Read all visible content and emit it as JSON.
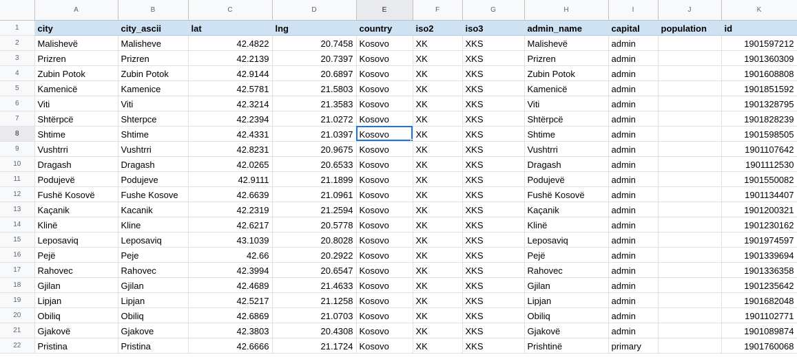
{
  "columns": [
    "A",
    "B",
    "C",
    "D",
    "E",
    "F",
    "G",
    "H",
    "I",
    "J",
    "K"
  ],
  "headers": [
    "city",
    "city_ascii",
    "lat",
    "lng",
    "country",
    "iso2",
    "iso3",
    "admin_name",
    "capital",
    "population",
    "id"
  ],
  "rows": [
    {
      "num": "2",
      "cells": [
        "Malishevë",
        "Malisheve",
        "42.4822",
        "20.7458",
        "Kosovo",
        "XK",
        "XKS",
        "Malishevë",
        "admin",
        "",
        "1901597212"
      ]
    },
    {
      "num": "3",
      "cells": [
        "Prizren",
        "Prizren",
        "42.2139",
        "20.7397",
        "Kosovo",
        "XK",
        "XKS",
        "Prizren",
        "admin",
        "",
        "1901360309"
      ]
    },
    {
      "num": "4",
      "cells": [
        "Zubin Potok",
        "Zubin Potok",
        "42.9144",
        "20.6897",
        "Kosovo",
        "XK",
        "XKS",
        "Zubin Potok",
        "admin",
        "",
        "1901608808"
      ]
    },
    {
      "num": "5",
      "cells": [
        "Kamenicë",
        "Kamenice",
        "42.5781",
        "21.5803",
        "Kosovo",
        "XK",
        "XKS",
        "Kamenicë",
        "admin",
        "",
        "1901851592"
      ]
    },
    {
      "num": "6",
      "cells": [
        "Viti",
        "Viti",
        "42.3214",
        "21.3583",
        "Kosovo",
        "XK",
        "XKS",
        "Viti",
        "admin",
        "",
        "1901328795"
      ]
    },
    {
      "num": "7",
      "cells": [
        "Shtërpcë",
        "Shterpce",
        "42.2394",
        "21.0272",
        "Kosovo",
        "XK",
        "XKS",
        "Shtërpcë",
        "admin",
        "",
        "1901828239"
      ]
    },
    {
      "num": "8",
      "cells": [
        "Shtime",
        "Shtime",
        "42.4331",
        "21.0397",
        "Kosovo",
        "XK",
        "XKS",
        "Shtime",
        "admin",
        "",
        "1901598505"
      ]
    },
    {
      "num": "9",
      "cells": [
        "Vushtrri",
        "Vushtrri",
        "42.8231",
        "20.9675",
        "Kosovo",
        "XK",
        "XKS",
        "Vushtrri",
        "admin",
        "",
        "1901107642"
      ]
    },
    {
      "num": "10",
      "cells": [
        "Dragash",
        "Dragash",
        "42.0265",
        "20.6533",
        "Kosovo",
        "XK",
        "XKS",
        "Dragash",
        "admin",
        "",
        "1901112530"
      ]
    },
    {
      "num": "11",
      "cells": [
        "Podujevë",
        "Podujeve",
        "42.9111",
        "21.1899",
        "Kosovo",
        "XK",
        "XKS",
        "Podujevë",
        "admin",
        "",
        "1901550082"
      ]
    },
    {
      "num": "12",
      "cells": [
        "Fushë Kosovë",
        "Fushe Kosove",
        "42.6639",
        "21.0961",
        "Kosovo",
        "XK",
        "XKS",
        "Fushë Kosovë",
        "admin",
        "",
        "1901134407"
      ]
    },
    {
      "num": "13",
      "cells": [
        "Kaçanik",
        "Kacanik",
        "42.2319",
        "21.2594",
        "Kosovo",
        "XK",
        "XKS",
        "Kaçanik",
        "admin",
        "",
        "1901200321"
      ]
    },
    {
      "num": "14",
      "cells": [
        "Klinë",
        "Kline",
        "42.6217",
        "20.5778",
        "Kosovo",
        "XK",
        "XKS",
        "Klinë",
        "admin",
        "",
        "1901230162"
      ]
    },
    {
      "num": "15",
      "cells": [
        "Leposaviq",
        "Leposaviq",
        "43.1039",
        "20.8028",
        "Kosovo",
        "XK",
        "XKS",
        "Leposaviq",
        "admin",
        "",
        "1901974597"
      ]
    },
    {
      "num": "16",
      "cells": [
        "Pejë",
        "Peje",
        "42.66",
        "20.2922",
        "Kosovo",
        "XK",
        "XKS",
        "Pejë",
        "admin",
        "",
        "1901339694"
      ]
    },
    {
      "num": "17",
      "cells": [
        "Rahovec",
        "Rahovec",
        "42.3994",
        "20.6547",
        "Kosovo",
        "XK",
        "XKS",
        "Rahovec",
        "admin",
        "",
        "1901336358"
      ]
    },
    {
      "num": "18",
      "cells": [
        "Gjilan",
        "Gjilan",
        "42.4689",
        "21.4633",
        "Kosovo",
        "XK",
        "XKS",
        "Gjilan",
        "admin",
        "",
        "1901235642"
      ]
    },
    {
      "num": "19",
      "cells": [
        "Lipjan",
        "Lipjan",
        "42.5217",
        "21.1258",
        "Kosovo",
        "XK",
        "XKS",
        "Lipjan",
        "admin",
        "",
        "1901682048"
      ]
    },
    {
      "num": "20",
      "cells": [
        "Obiliq",
        "Obiliq",
        "42.6869",
        "21.0703",
        "Kosovo",
        "XK",
        "XKS",
        "Obiliq",
        "admin",
        "",
        "1901102771"
      ]
    },
    {
      "num": "21",
      "cells": [
        "Gjakovë",
        "Gjakove",
        "42.3803",
        "20.4308",
        "Kosovo",
        "XK",
        "XKS",
        "Gjakovë",
        "admin",
        "",
        "1901089874"
      ]
    },
    {
      "num": "22",
      "cells": [
        "Pristina",
        "Pristina",
        "42.6666",
        "21.1724",
        "Kosovo",
        "XK",
        "XKS",
        "Prishtinë",
        "primary",
        "",
        "1901760068"
      ]
    }
  ],
  "header_row_num": "1",
  "active_cell": {
    "row": "8",
    "col": "E"
  },
  "colors": {
    "header_fill": "#cfe2f3",
    "selection": "#1a73e8",
    "gridline": "#e1e1e1"
  }
}
